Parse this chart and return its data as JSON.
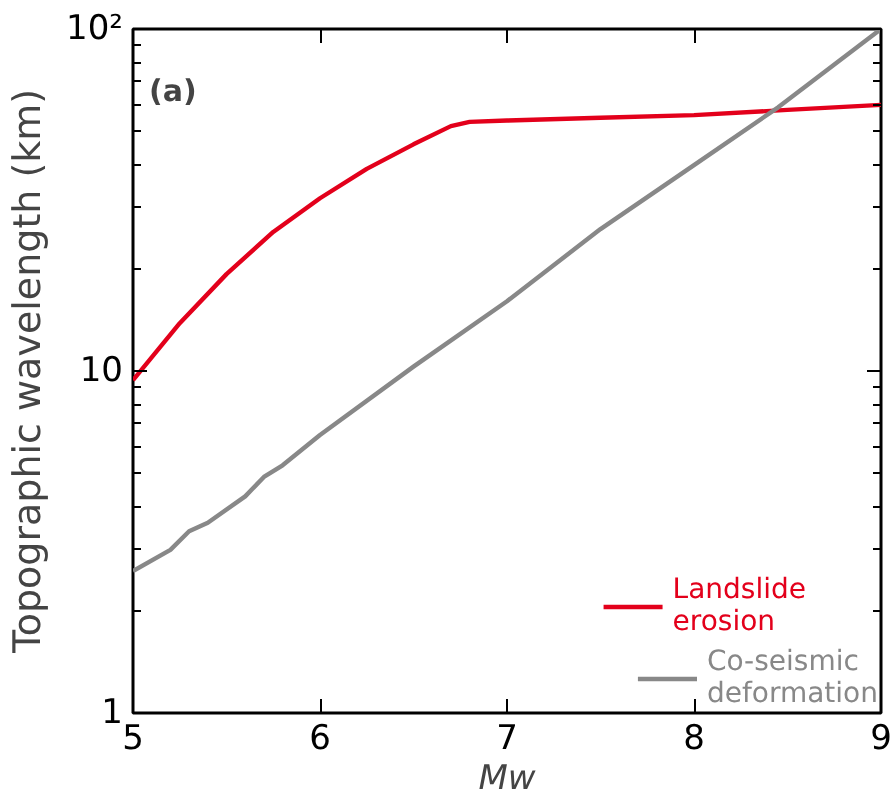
{
  "chart_data": {
    "type": "line",
    "xlabel": "Mw",
    "ylabel": "Topographic wavelength (km)",
    "log": "y",
    "xlim": [
      5,
      9
    ],
    "ylim": [
      1,
      100
    ],
    "xticks": [
      5,
      6,
      7,
      8,
      9
    ],
    "yticks": [
      1,
      10,
      {
        "value": 100,
        "label": "10²"
      }
    ],
    "grid": false,
    "legend": "bottom right",
    "annotations": [
      "(a)"
    ],
    "series": [
      {
        "name": "Landslide erosion",
        "color": "#e3001b",
        "x": [
          5,
          5.25,
          5.5,
          5.75,
          6,
          6.25,
          6.5,
          6.7,
          6.8,
          7,
          7.5,
          8,
          8.5,
          9
        ],
        "values": [
          9.4,
          13.8,
          19.2,
          25.5,
          32,
          39,
          46,
          52,
          53.5,
          54,
          55,
          56,
          58,
          60
        ]
      },
      {
        "name": "Co-seismic deformation",
        "color": "#888888",
        "x": [
          5,
          5.2,
          5.3,
          5.4,
          5.6,
          5.7,
          5.8,
          6,
          6.5,
          7,
          7.5,
          8,
          8.45,
          9
        ],
        "values": [
          2.6,
          3.0,
          3.4,
          3.6,
          4.3,
          4.9,
          5.3,
          6.5,
          10.3,
          16,
          26,
          40,
          59,
          100
        ]
      }
    ]
  }
}
